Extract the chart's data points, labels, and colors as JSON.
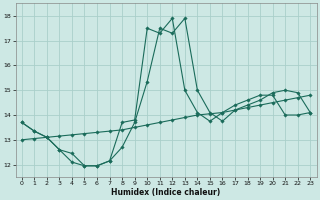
{
  "xlabel": "Humidex (Indice chaleur)",
  "xlim": [
    -0.5,
    23.5
  ],
  "ylim": [
    11.5,
    18.5
  ],
  "yticks": [
    12,
    13,
    14,
    15,
    16,
    17,
    18
  ],
  "xticks": [
    0,
    1,
    2,
    3,
    4,
    5,
    6,
    7,
    8,
    9,
    10,
    11,
    12,
    13,
    14,
    15,
    16,
    17,
    18,
    19,
    20,
    21,
    22,
    23
  ],
  "bg_color": "#cde8e4",
  "grid_color": "#aacfca",
  "line_color": "#1a6b5a",
  "line1_x": [
    0,
    1,
    2,
    3,
    4,
    5,
    6,
    7,
    8,
    9,
    10,
    11,
    12,
    13,
    14,
    15,
    16,
    17,
    18,
    19,
    20,
    21,
    22,
    23
  ],
  "line1_y": [
    13.7,
    13.35,
    13.1,
    12.6,
    12.45,
    11.95,
    11.95,
    12.15,
    12.7,
    13.7,
    15.35,
    17.5,
    17.3,
    17.9,
    15.0,
    14.1,
    13.75,
    14.2,
    14.4,
    14.6,
    14.9,
    15.0,
    14.9,
    14.1
  ],
  "line2_x": [
    0,
    1,
    2,
    3,
    4,
    5,
    6,
    7,
    8,
    9,
    10,
    11,
    12,
    13,
    14,
    15,
    16,
    17,
    18,
    19,
    20,
    21,
    22,
    23
  ],
  "line2_y": [
    13.0,
    13.05,
    13.1,
    13.15,
    13.2,
    13.25,
    13.3,
    13.35,
    13.4,
    13.5,
    13.6,
    13.7,
    13.8,
    13.9,
    14.0,
    14.05,
    14.1,
    14.2,
    14.3,
    14.4,
    14.5,
    14.6,
    14.7,
    14.8
  ],
  "line3_x": [
    0,
    1,
    2,
    3,
    4,
    5,
    6,
    7,
    8,
    9,
    10,
    11,
    12,
    13,
    14,
    15,
    16,
    17,
    18,
    19,
    20,
    21,
    22,
    23
  ],
  "line3_y": [
    13.7,
    13.35,
    13.1,
    12.6,
    12.1,
    11.95,
    11.95,
    12.15,
    13.7,
    13.8,
    17.5,
    17.3,
    17.9,
    15.0,
    14.1,
    13.75,
    14.1,
    14.4,
    14.6,
    14.8,
    14.8,
    14.0,
    14.0,
    14.1
  ]
}
